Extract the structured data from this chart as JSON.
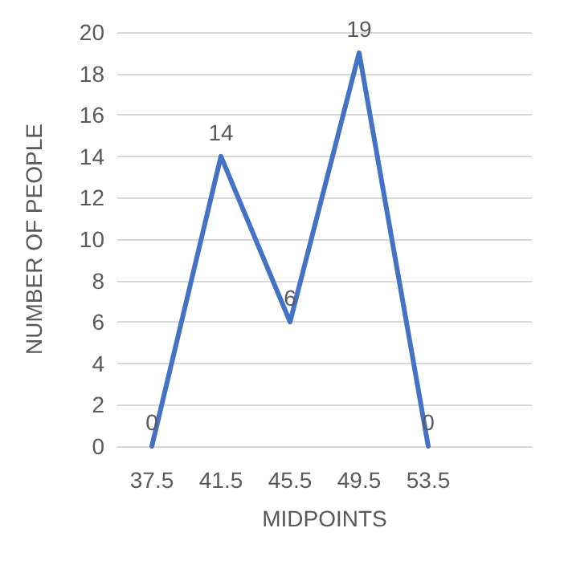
{
  "chart_data": {
    "type": "line",
    "xlabel": "MIDPOINTS",
    "ylabel": "NUMBER OF PEOPLE",
    "categories": [
      "37.5",
      "41.5",
      "45.5",
      "49.5",
      "53.5",
      null
    ],
    "series": [
      {
        "color": "#4472c4",
        "values": [
          0,
          14,
          6,
          19,
          0,
          null
        ]
      }
    ],
    "ylim": [
      0,
      20
    ],
    "yticks": [
      0,
      2,
      4,
      6,
      8,
      10,
      12,
      14,
      16,
      18,
      20
    ],
    "grid": "y",
    "marker": "none",
    "line_style": "solid",
    "data_labels": true
  }
}
